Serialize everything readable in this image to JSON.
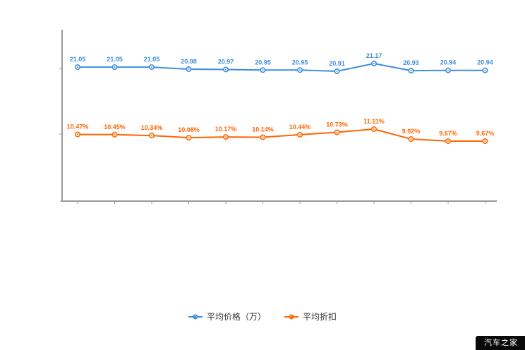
{
  "chart_data": {
    "type": "line",
    "title": "",
    "xlabel": "",
    "ylabel": "",
    "grid": false,
    "legend_position": "bottom",
    "series": [
      {
        "name": "平均价格（万）",
        "color": "#3e8ede",
        "values": [
          21.05,
          21.05,
          21.05,
          20.98,
          20.97,
          20.95,
          20.95,
          20.91,
          21.17,
          20.93,
          20.94,
          20.94
        ],
        "labels": [
          "21.05",
          "21.05",
          "21.05",
          "20.98",
          "20.97",
          "20.95",
          "20.95",
          "20.91",
          "21.17",
          "20.93",
          "20.94",
          "20.94"
        ]
      },
      {
        "name": "平均折扣",
        "color": "#ff6600",
        "values": [
          10.47,
          10.45,
          10.34,
          10.08,
          10.17,
          10.14,
          10.44,
          10.73,
          11.11,
          9.92,
          9.67,
          9.67
        ],
        "labels": [
          "10.47%",
          "10.45%",
          "10.34%",
          "10.08%",
          "10.17%",
          "10.14%",
          "10.44%",
          "10.73%",
          "11.11%",
          "9.92%",
          "9.67%",
          "9.67%"
        ]
      }
    ]
  },
  "legend": {
    "items": [
      {
        "label": "平均价格（万）",
        "color": "#3e8ede"
      },
      {
        "label": "平均折扣",
        "color": "#ff6600"
      }
    ]
  },
  "watermark": "汽车之家"
}
